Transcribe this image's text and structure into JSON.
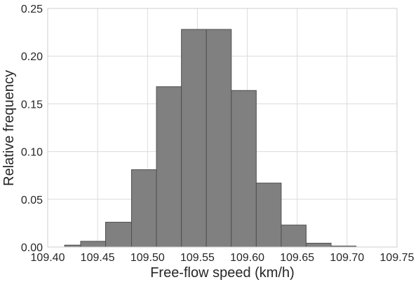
{
  "chart_data": {
    "type": "bar",
    "subtype": "histogram",
    "title": "",
    "xlabel": "Free-flow speed (km/h)",
    "ylabel": "Relative frequency",
    "xlim": [
      109.4,
      109.75
    ],
    "ylim": [
      0,
      0.25
    ],
    "x_ticks": [
      "109.40",
      "109.45",
      "109.50",
      "109.55",
      "109.60",
      "109.65",
      "109.70",
      "109.75"
    ],
    "y_ticks": [
      "0.00",
      "0.05",
      "0.10",
      "0.15",
      "0.20",
      "0.25"
    ],
    "grid": true,
    "bar_color": "#808080",
    "bins": [
      {
        "x0": 109.417,
        "x1": 109.433,
        "value": 0.002
      },
      {
        "x0": 109.433,
        "x1": 109.458,
        "value": 0.006
      },
      {
        "x0": 109.458,
        "x1": 109.484,
        "value": 0.026
      },
      {
        "x0": 109.484,
        "x1": 109.509,
        "value": 0.081
      },
      {
        "x0": 109.509,
        "x1": 109.534,
        "value": 0.168
      },
      {
        "x0": 109.534,
        "x1": 109.559,
        "value": 0.228
      },
      {
        "x0": 109.559,
        "x1": 109.584,
        "value": 0.228
      },
      {
        "x0": 109.584,
        "x1": 109.609,
        "value": 0.164
      },
      {
        "x0": 109.609,
        "x1": 109.634,
        "value": 0.067
      },
      {
        "x0": 109.634,
        "x1": 109.659,
        "value": 0.023
      },
      {
        "x0": 109.659,
        "x1": 109.684,
        "value": 0.004
      },
      {
        "x0": 109.684,
        "x1": 109.709,
        "value": 0.001
      }
    ]
  }
}
